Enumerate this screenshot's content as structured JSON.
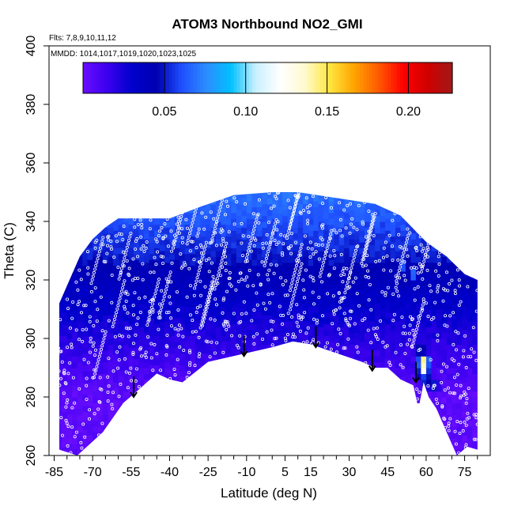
{
  "chart_data": {
    "type": "heatmap",
    "title": "ATOM3 Northbound NO2_GMI",
    "flights_note": "Flts: 7,8,9,10,11,12",
    "dates_note": "MMDD: 1014,1017,1019,1020,1023,1025",
    "xlabel": "Latitude (deg N)",
    "ylabel": "Theta (C)",
    "xlim": [
      -87,
      85
    ],
    "ylim": [
      260,
      400
    ],
    "x_ticks": [
      -85,
      -70,
      -55,
      -40,
      -25,
      -10,
      5,
      15,
      30,
      45,
      60,
      75
    ],
    "x_minor_ticks": [
      -80,
      -75,
      -65,
      -60,
      -50,
      -45,
      -35,
      -30,
      -20,
      -15,
      -5,
      0,
      10,
      20,
      25,
      35,
      40,
      50,
      55,
      65,
      70,
      80
    ],
    "y_ticks": [
      260,
      280,
      300,
      320,
      340,
      360,
      380,
      400
    ],
    "colorbar": {
      "range": [
        0,
        0.227
      ],
      "ticks": [
        0.05,
        0.1,
        0.15,
        0.2
      ],
      "tick_labels": [
        "0.05",
        "0.10",
        "0.15",
        "0.20"
      ],
      "colors": [
        "#6a0dff",
        "#3a00ee",
        "#0000cc",
        "#0000b0",
        "#1f4fff",
        "#2d8cff",
        "#00c0ff",
        "#c8f0ff",
        "#ffffff",
        "#fffad0",
        "#ffe640",
        "#ffa500",
        "#ff5a00",
        "#ff0000",
        "#d00000",
        "#a01818"
      ]
    },
    "field_top_boundary": [
      [
        -83,
        312
      ],
      [
        -80,
        318
      ],
      [
        -75,
        328
      ],
      [
        -70,
        334
      ],
      [
        -65,
        338
      ],
      [
        -60,
        341
      ],
      [
        -50,
        341
      ],
      [
        -40,
        341
      ],
      [
        -28,
        345
      ],
      [
        -15,
        349
      ],
      [
        0,
        350
      ],
      [
        10,
        350
      ],
      [
        25,
        348
      ],
      [
        40,
        346
      ],
      [
        50,
        342
      ],
      [
        60,
        333
      ],
      [
        68,
        328
      ],
      [
        75,
        322
      ],
      [
        80,
        320
      ]
    ],
    "field_bottom_boundary": [
      [
        -83,
        262
      ],
      [
        -76,
        260
      ],
      [
        -66,
        268
      ],
      [
        -58,
        278
      ],
      [
        -54,
        281
      ],
      [
        -45,
        288
      ],
      [
        -40,
        286
      ],
      [
        -35,
        285
      ],
      [
        -25,
        292
      ],
      [
        -10,
        295
      ],
      [
        0,
        297
      ],
      [
        8,
        299
      ],
      [
        15,
        298
      ],
      [
        25,
        295
      ],
      [
        35,
        292
      ],
      [
        40,
        290
      ],
      [
        45,
        290
      ],
      [
        50,
        286
      ],
      [
        55,
        284
      ],
      [
        57,
        276
      ],
      [
        59,
        285
      ],
      [
        61,
        280
      ],
      [
        64,
        276
      ],
      [
        68,
        268
      ],
      [
        72,
        260
      ],
      [
        76,
        263
      ],
      [
        80,
        262
      ]
    ],
    "arrows": [
      {
        "lat": -54,
        "theta": 280
      },
      {
        "lat": -11,
        "theta": 294
      },
      {
        "lat": 17,
        "theta": 297
      },
      {
        "lat": 39,
        "theta": 289
      },
      {
        "lat": 56,
        "theta": 285
      }
    ],
    "hotspots": [
      {
        "lat": -54,
        "theta": 312,
        "value": 0.035
      },
      {
        "lat": -8,
        "theta": 336,
        "value": 0.06
      },
      {
        "lat": 51,
        "theta": 325,
        "value": 0.07
      },
      {
        "lat": 55,
        "theta": 322,
        "value": 0.075
      },
      {
        "lat": 58,
        "theta": 296,
        "value": 0.06
      },
      {
        "lat": 59,
        "theta": 292,
        "value": 0.17
      },
      {
        "lat": 59,
        "theta": 289,
        "value": 0.12
      },
      {
        "lat": 60,
        "theta": 286,
        "value": 0.07
      },
      {
        "lat": 63,
        "theta": 284,
        "value": 0.055
      }
    ]
  }
}
